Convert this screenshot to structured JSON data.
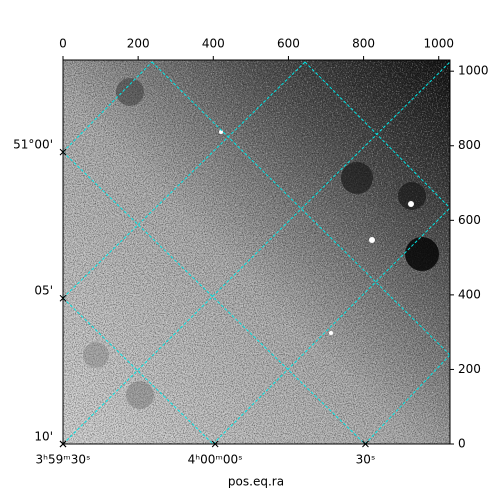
{
  "chart_data": {
    "type": "image",
    "xlabel": "pos.eq.ra",
    "xlim": [
      0,
      1030
    ],
    "ylim": [
      0,
      1030
    ],
    "xticks": [
      0,
      200,
      400,
      600,
      800,
      1000
    ],
    "yticks": [
      0,
      200,
      400,
      600,
      800,
      1000
    ],
    "ra_ticks": [
      {
        "value": 0,
        "label": "3ʰ59ᵐ30ˢ"
      },
      {
        "value": 405,
        "label": "4ʰ00ᵐ00ˢ"
      },
      {
        "value": 805,
        "label": "30ˢ"
      }
    ],
    "dec_ticks": [
      {
        "value": 783,
        "label": "51°00'"
      },
      {
        "value": 391,
        "label": "05'"
      },
      {
        "value": 0,
        "label": "10'"
      }
    ],
    "grid_color": "#00e5e5"
  }
}
